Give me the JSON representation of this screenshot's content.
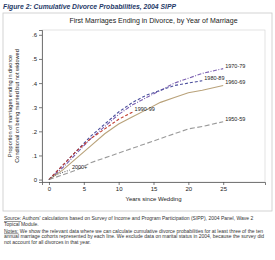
{
  "chart_data": {
    "type": "line",
    "caption": "Figure 2: Cumulative Divorce Probabilities, 2004 SIPP",
    "title": "First Marriages Ending in Divorce, by Year of Marriage",
    "xlabel": "Years since Wedding",
    "ylabel": [
      "Proportion of marriages ending in divorce",
      "Conditional on being married but not widowed"
    ],
    "xlim": [
      -1,
      31
    ],
    "ylim": [
      -0.01,
      0.62
    ],
    "xticks": [
      0,
      5,
      10,
      15,
      20,
      25
    ],
    "yticks": [
      0,
      {
        "value": 0.1,
        "label": ".1"
      },
      {
        "value": 0.2,
        "label": ".2"
      },
      {
        "value": 0.3,
        "label": ".3"
      },
      {
        "value": 0.4,
        "label": ".4"
      },
      {
        "value": 0.5,
        "label": ".5"
      },
      {
        "value": 0.6,
        "label": ".6"
      }
    ],
    "grid": false,
    "series": [
      {
        "name": "1970-79",
        "color": "#7a5fb0",
        "line_style": "dashdot",
        "x": [
          0,
          2,
          4,
          6,
          8,
          10,
          12,
          14,
          16,
          18,
          20,
          22,
          25
        ],
        "values": [
          0,
          0.05,
          0.11,
          0.17,
          0.22,
          0.27,
          0.31,
          0.34,
          0.37,
          0.4,
          0.42,
          0.44,
          0.46
        ]
      },
      {
        "name": "1980-89",
        "color": "#4b4f9c",
        "line_style": "dashed",
        "x": [
          0,
          2,
          4,
          6,
          8,
          10,
          12,
          14,
          16,
          18,
          20,
          22
        ],
        "values": [
          0,
          0.06,
          0.12,
          0.18,
          0.23,
          0.28,
          0.32,
          0.35,
          0.37,
          0.39,
          0.4,
          0.41
        ]
      },
      {
        "name": "1960-69",
        "color": "#b9a27a",
        "line_style": "solid",
        "x": [
          0,
          2,
          4,
          6,
          8,
          10,
          12,
          14,
          16,
          18,
          20,
          22,
          25
        ],
        "values": [
          0,
          0.04,
          0.09,
          0.14,
          0.19,
          0.23,
          0.26,
          0.29,
          0.32,
          0.34,
          0.36,
          0.37,
          0.39
        ]
      },
      {
        "name": "1990-99",
        "color": "#c0392b",
        "line_style": "dashed",
        "x": [
          0,
          2,
          4,
          6,
          8,
          10,
          12
        ],
        "values": [
          0,
          0.06,
          0.12,
          0.17,
          0.21,
          0.25,
          0.28
        ]
      },
      {
        "name": "1950-59",
        "color": "#9a9a9a",
        "line_style": "longdash",
        "x": [
          0,
          2,
          4,
          6,
          8,
          10,
          12,
          14,
          16,
          18,
          20,
          22,
          25
        ],
        "values": [
          0,
          0.02,
          0.04,
          0.07,
          0.09,
          0.11,
          0.13,
          0.15,
          0.17,
          0.19,
          0.21,
          0.22,
          0.24
        ]
      },
      {
        "name": "2000+",
        "color": "#666666",
        "line_style": "dotted",
        "x": [
          0,
          1,
          2,
          3
        ],
        "values": [
          0,
          0.02,
          0.03,
          0.04
        ]
      }
    ],
    "source": "Source: Authors' calculations based on Survey of Income and Program Participation (SIPP), 2004 Panel, Wave 2 Topical Module.",
    "notes": "Notes: We show the relevant data where we can calculate cumulative divorce probabilities for at least three of the ten annual marriage cohorts represented by each line. We exclude data on marital status in 2004, because the survey did not account for all divorces in that year."
  }
}
